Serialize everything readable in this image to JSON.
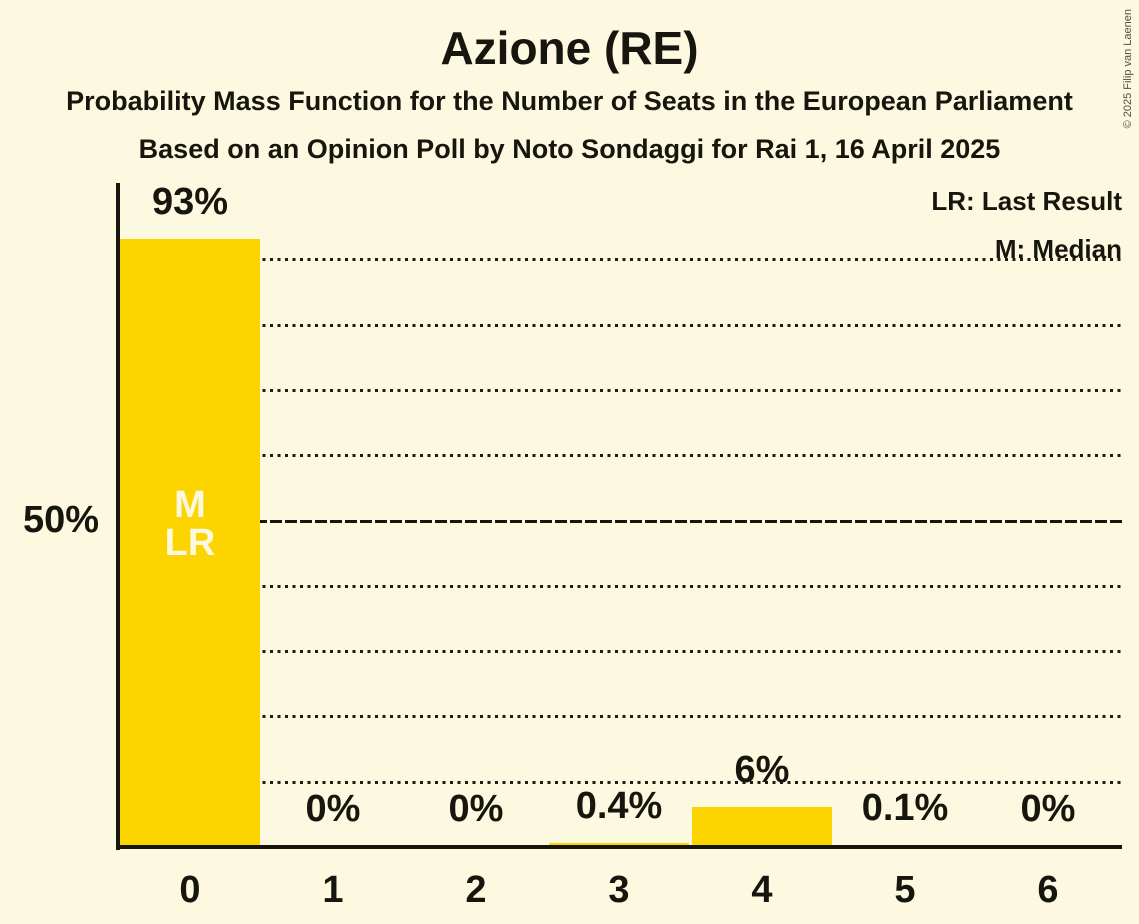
{
  "header": {
    "title": "Azione (RE)",
    "subtitle1": "Probability Mass Function for the Number of Seats in the European Parliament",
    "subtitle2": "Based on an Opinion Poll by Noto Sondaggi for Rai 1, 16 April 2025"
  },
  "legend": {
    "last_result": "LR: Last Result",
    "median": "M: Median"
  },
  "copyright": "© 2025 Filip van Laenen",
  "colors": {
    "background": "#FDF9E0",
    "bar": "#FCD400",
    "text": "#16160E",
    "bar_marker_text": "#FDF9E0",
    "copyright_text": "#4F4F45"
  },
  "chart_data": {
    "type": "bar",
    "title": "Azione (RE)",
    "categories": [
      "0",
      "1",
      "2",
      "3",
      "4",
      "5",
      "6"
    ],
    "values": [
      93,
      0,
      0,
      0.4,
      6,
      0.1,
      0
    ],
    "value_labels": [
      "93%",
      "0%",
      "0%",
      "0.4%",
      "6%",
      "0.1%",
      "0%"
    ],
    "xlabel": "",
    "ylabel": "",
    "ylim": [
      0,
      100
    ],
    "y_gridline_step_percent": 10,
    "y_solid_line_percent": 50,
    "y_solid_line_label": "50%",
    "grid": "dotted horizontal, right of bars",
    "legend_position": "top-right",
    "annotations": {
      "median_marker": "M",
      "last_result_marker": "LR",
      "median_seat": "0",
      "last_result_seat": "0"
    }
  }
}
